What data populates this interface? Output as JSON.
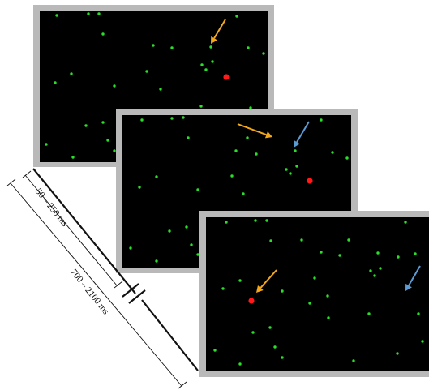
{
  "colors": {
    "background": "#ffffff",
    "frame": "#b9b9b9",
    "screen": "#000000",
    "dot_green": "#28e028",
    "dot_red": "#ff1a1a",
    "arrow_orange": "#f3a81c",
    "arrow_blue": "#5b9bd5",
    "timeline": "#111111"
  },
  "timeline": {
    "short_interval_label": "50 – 250 ms",
    "long_interval_label": "700 – 2100 ms"
  }
}
